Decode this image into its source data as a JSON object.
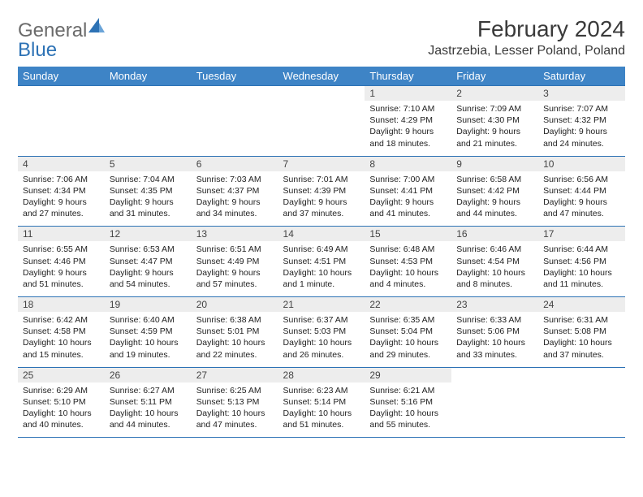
{
  "logo": {
    "general": "General",
    "blue": "Blue"
  },
  "title": "February 2024",
  "location": "Jastrzebia, Lesser Poland, Poland",
  "colors": {
    "header_bg": "#3e84c6",
    "header_text": "#ffffff",
    "daynum_bg": "#ededed",
    "border": "#2d72b5",
    "logo_gray": "#6b6b6b",
    "logo_blue": "#2d72b5"
  },
  "dow": [
    "Sunday",
    "Monday",
    "Tuesday",
    "Wednesday",
    "Thursday",
    "Friday",
    "Saturday"
  ],
  "weeks": [
    [
      {
        "num": "",
        "sunrise": "",
        "sunset": "",
        "daylight": ""
      },
      {
        "num": "",
        "sunrise": "",
        "sunset": "",
        "daylight": ""
      },
      {
        "num": "",
        "sunrise": "",
        "sunset": "",
        "daylight": ""
      },
      {
        "num": "",
        "sunrise": "",
        "sunset": "",
        "daylight": ""
      },
      {
        "num": "1",
        "sunrise": "Sunrise: 7:10 AM",
        "sunset": "Sunset: 4:29 PM",
        "daylight": "Daylight: 9 hours and 18 minutes."
      },
      {
        "num": "2",
        "sunrise": "Sunrise: 7:09 AM",
        "sunset": "Sunset: 4:30 PM",
        "daylight": "Daylight: 9 hours and 21 minutes."
      },
      {
        "num": "3",
        "sunrise": "Sunrise: 7:07 AM",
        "sunset": "Sunset: 4:32 PM",
        "daylight": "Daylight: 9 hours and 24 minutes."
      }
    ],
    [
      {
        "num": "4",
        "sunrise": "Sunrise: 7:06 AM",
        "sunset": "Sunset: 4:34 PM",
        "daylight": "Daylight: 9 hours and 27 minutes."
      },
      {
        "num": "5",
        "sunrise": "Sunrise: 7:04 AM",
        "sunset": "Sunset: 4:35 PM",
        "daylight": "Daylight: 9 hours and 31 minutes."
      },
      {
        "num": "6",
        "sunrise": "Sunrise: 7:03 AM",
        "sunset": "Sunset: 4:37 PM",
        "daylight": "Daylight: 9 hours and 34 minutes."
      },
      {
        "num": "7",
        "sunrise": "Sunrise: 7:01 AM",
        "sunset": "Sunset: 4:39 PM",
        "daylight": "Daylight: 9 hours and 37 minutes."
      },
      {
        "num": "8",
        "sunrise": "Sunrise: 7:00 AM",
        "sunset": "Sunset: 4:41 PM",
        "daylight": "Daylight: 9 hours and 41 minutes."
      },
      {
        "num": "9",
        "sunrise": "Sunrise: 6:58 AM",
        "sunset": "Sunset: 4:42 PM",
        "daylight": "Daylight: 9 hours and 44 minutes."
      },
      {
        "num": "10",
        "sunrise": "Sunrise: 6:56 AM",
        "sunset": "Sunset: 4:44 PM",
        "daylight": "Daylight: 9 hours and 47 minutes."
      }
    ],
    [
      {
        "num": "11",
        "sunrise": "Sunrise: 6:55 AM",
        "sunset": "Sunset: 4:46 PM",
        "daylight": "Daylight: 9 hours and 51 minutes."
      },
      {
        "num": "12",
        "sunrise": "Sunrise: 6:53 AM",
        "sunset": "Sunset: 4:47 PM",
        "daylight": "Daylight: 9 hours and 54 minutes."
      },
      {
        "num": "13",
        "sunrise": "Sunrise: 6:51 AM",
        "sunset": "Sunset: 4:49 PM",
        "daylight": "Daylight: 9 hours and 57 minutes."
      },
      {
        "num": "14",
        "sunrise": "Sunrise: 6:49 AM",
        "sunset": "Sunset: 4:51 PM",
        "daylight": "Daylight: 10 hours and 1 minute."
      },
      {
        "num": "15",
        "sunrise": "Sunrise: 6:48 AM",
        "sunset": "Sunset: 4:53 PM",
        "daylight": "Daylight: 10 hours and 4 minutes."
      },
      {
        "num": "16",
        "sunrise": "Sunrise: 6:46 AM",
        "sunset": "Sunset: 4:54 PM",
        "daylight": "Daylight: 10 hours and 8 minutes."
      },
      {
        "num": "17",
        "sunrise": "Sunrise: 6:44 AM",
        "sunset": "Sunset: 4:56 PM",
        "daylight": "Daylight: 10 hours and 11 minutes."
      }
    ],
    [
      {
        "num": "18",
        "sunrise": "Sunrise: 6:42 AM",
        "sunset": "Sunset: 4:58 PM",
        "daylight": "Daylight: 10 hours and 15 minutes."
      },
      {
        "num": "19",
        "sunrise": "Sunrise: 6:40 AM",
        "sunset": "Sunset: 4:59 PM",
        "daylight": "Daylight: 10 hours and 19 minutes."
      },
      {
        "num": "20",
        "sunrise": "Sunrise: 6:38 AM",
        "sunset": "Sunset: 5:01 PM",
        "daylight": "Daylight: 10 hours and 22 minutes."
      },
      {
        "num": "21",
        "sunrise": "Sunrise: 6:37 AM",
        "sunset": "Sunset: 5:03 PM",
        "daylight": "Daylight: 10 hours and 26 minutes."
      },
      {
        "num": "22",
        "sunrise": "Sunrise: 6:35 AM",
        "sunset": "Sunset: 5:04 PM",
        "daylight": "Daylight: 10 hours and 29 minutes."
      },
      {
        "num": "23",
        "sunrise": "Sunrise: 6:33 AM",
        "sunset": "Sunset: 5:06 PM",
        "daylight": "Daylight: 10 hours and 33 minutes."
      },
      {
        "num": "24",
        "sunrise": "Sunrise: 6:31 AM",
        "sunset": "Sunset: 5:08 PM",
        "daylight": "Daylight: 10 hours and 37 minutes."
      }
    ],
    [
      {
        "num": "25",
        "sunrise": "Sunrise: 6:29 AM",
        "sunset": "Sunset: 5:10 PM",
        "daylight": "Daylight: 10 hours and 40 minutes."
      },
      {
        "num": "26",
        "sunrise": "Sunrise: 6:27 AM",
        "sunset": "Sunset: 5:11 PM",
        "daylight": "Daylight: 10 hours and 44 minutes."
      },
      {
        "num": "27",
        "sunrise": "Sunrise: 6:25 AM",
        "sunset": "Sunset: 5:13 PM",
        "daylight": "Daylight: 10 hours and 47 minutes."
      },
      {
        "num": "28",
        "sunrise": "Sunrise: 6:23 AM",
        "sunset": "Sunset: 5:14 PM",
        "daylight": "Daylight: 10 hours and 51 minutes."
      },
      {
        "num": "29",
        "sunrise": "Sunrise: 6:21 AM",
        "sunset": "Sunset: 5:16 PM",
        "daylight": "Daylight: 10 hours and 55 minutes."
      },
      {
        "num": "",
        "sunrise": "",
        "sunset": "",
        "daylight": ""
      },
      {
        "num": "",
        "sunrise": "",
        "sunset": "",
        "daylight": ""
      }
    ]
  ]
}
